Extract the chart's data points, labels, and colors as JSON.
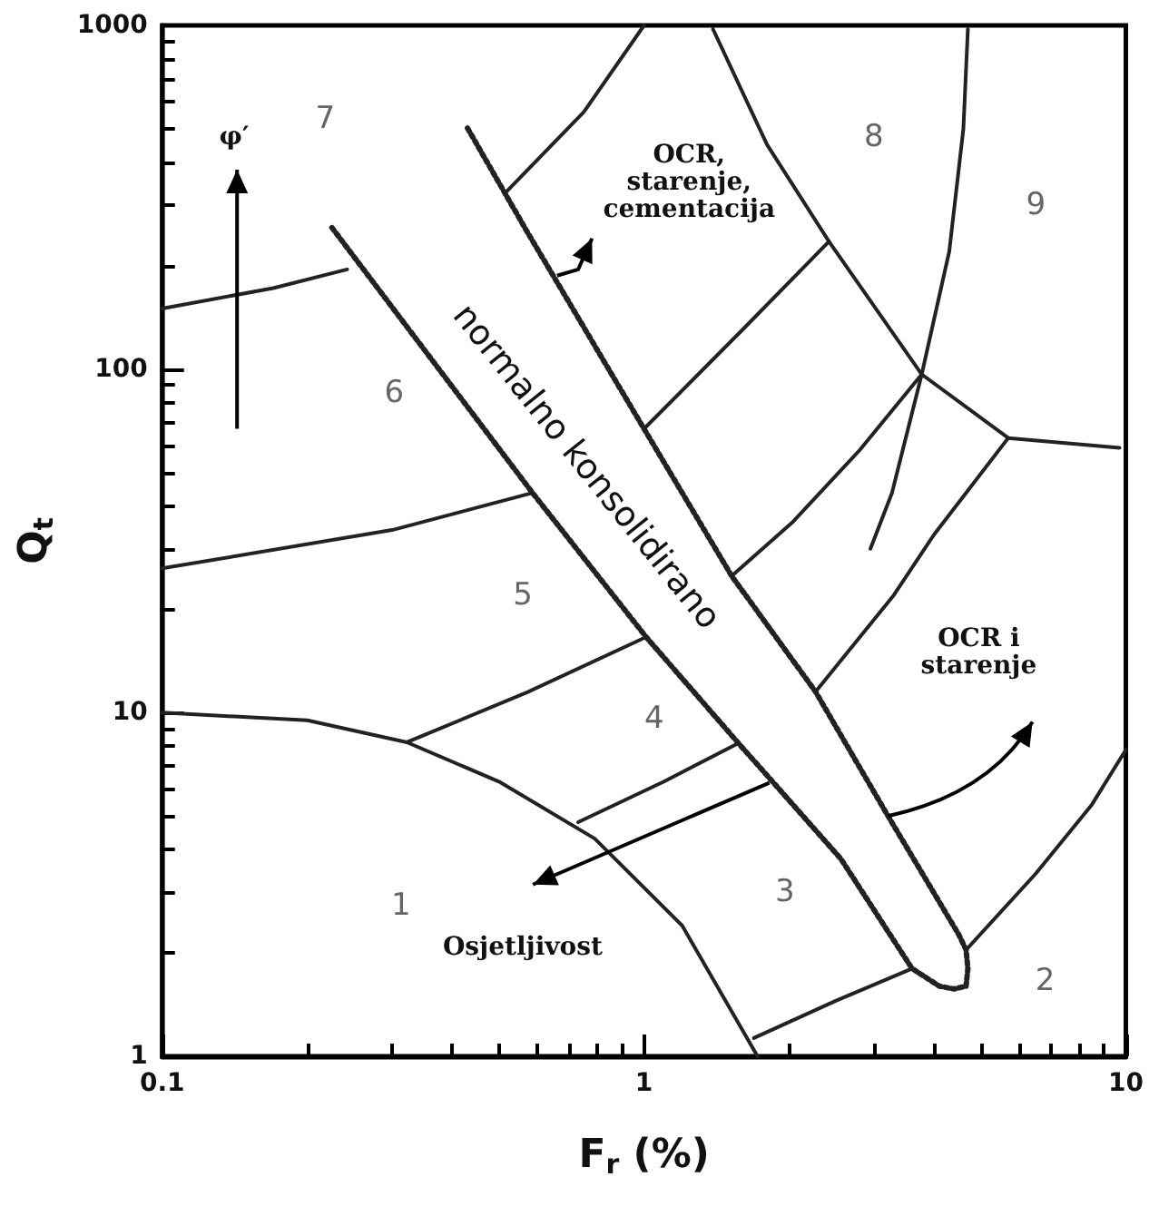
{
  "chart_data": {
    "type": "line",
    "xlabel": "F$_{r}$ (%)",
    "ylabel": "Q$_{t}$",
    "log": "xy",
    "grid": false,
    "marker": "none",
    "xlim": [
      0.1,
      10
    ],
    "ylim": [
      1,
      1000
    ],
    "xticks": [
      0.1,
      1,
      10
    ],
    "yticks": [
      1,
      10,
      100,
      1000
    ],
    "series": [
      {
        "color": "#222222",
        "line_style": "solid",
        "x": [
          0.1,
          0.2,
          0.322,
          0.5,
          0.79,
          1.2,
          1.72
        ],
        "values": [
          10,
          9.5,
          8.2,
          6.3,
          4.3,
          2.4,
          1
        ]
      },
      {
        "color": "#222222",
        "line_style": "solid",
        "x": [
          1.69,
          2.5,
          3.6
        ],
        "values": [
          1.13,
          1.45,
          1.8
        ]
      },
      {
        "color": "#222222",
        "line_style": "solid",
        "x": [
          4.66,
          6.5,
          8.5,
          10
        ],
        "values": [
          2.04,
          3.4,
          5.4,
          7.8
        ]
      },
      {
        "color": "#222222",
        "line_style": "solid",
        "x": [
          0.73,
          1.1,
          1.57
        ],
        "values": [
          4.8,
          6.3,
          8.15
        ]
      },
      {
        "color": "#222222",
        "line_style": "solid",
        "x": [
          2.27,
          3.3,
          4.0,
          5.7
        ],
        "values": [
          11.5,
          22,
          33,
          63
        ]
      },
      {
        "color": "#222222",
        "line_style": "solid",
        "x": [
          0.322,
          0.575,
          1.01
        ],
        "values": [
          8.2,
          11.5,
          16.6
        ]
      },
      {
        "color": "#222222",
        "line_style": "solid",
        "x": [
          1.52,
          2.04,
          2.8,
          3.77
        ],
        "values": [
          25,
          36,
          58,
          96.5
        ]
      },
      {
        "color": "#222222",
        "line_style": "solid",
        "x": [
          0.1,
          0.3,
          0.587
        ],
        "values": [
          26.3,
          34,
          43.6
        ]
      },
      {
        "color": "#222222",
        "line_style": "solid",
        "x": [
          1.0,
          1.6,
          2.42
        ],
        "values": [
          67,
          130,
          235
        ]
      },
      {
        "color": "#222222",
        "line_style": "solid",
        "x": [
          0.1,
          0.17,
          0.242
        ],
        "values": [
          150,
          172,
          195
        ]
      },
      {
        "color": "#222222",
        "line_style": "solid",
        "x": [
          0.52,
          0.75,
          1.0
        ],
        "values": [
          330,
          560,
          1000
        ]
      },
      {
        "color": "#222222",
        "line_style": "solid",
        "x": [
          1.39,
          1.8,
          2.42,
          3.77,
          5.7,
          9.7
        ],
        "values": [
          976,
          450,
          235,
          96.5,
          63,
          59
        ]
      },
      {
        "color": "#222222",
        "line_style": "solid",
        "x": [
          4.7,
          4.6,
          4.3,
          3.77,
          3.27,
          2.95
        ],
        "values": [
          976,
          500,
          220,
          96.5,
          43.6,
          30
        ]
      },
      {
        "color": "#222222",
        "line_style": "dotted",
        "x": [
          0.225,
          0.587,
          1.01,
          1.57,
          2.56,
          3.6,
          4.1,
          4.4,
          4.66,
          4.7,
          4.66,
          4.5,
          3.21,
          2.27,
          1.52,
          1.0,
          0.57,
          0.43
        ],
        "values": [
          258,
          43.6,
          16.6,
          8.15,
          3.76,
          1.8,
          1.6,
          1.57,
          1.6,
          1.8,
          2.04,
          2.26,
          5.0,
          11.5,
          25,
          67,
          253,
          503
        ]
      }
    ],
    "annotations": [
      "1",
      "2",
      "3",
      "4",
      "5",
      "6",
      "7",
      "8",
      "9",
      "φ′",
      "OCR,\nstarenje,\ncementacija",
      "OCR i\nstarenje",
      "Osjetljivost",
      "normalno konsolidirano"
    ]
  }
}
